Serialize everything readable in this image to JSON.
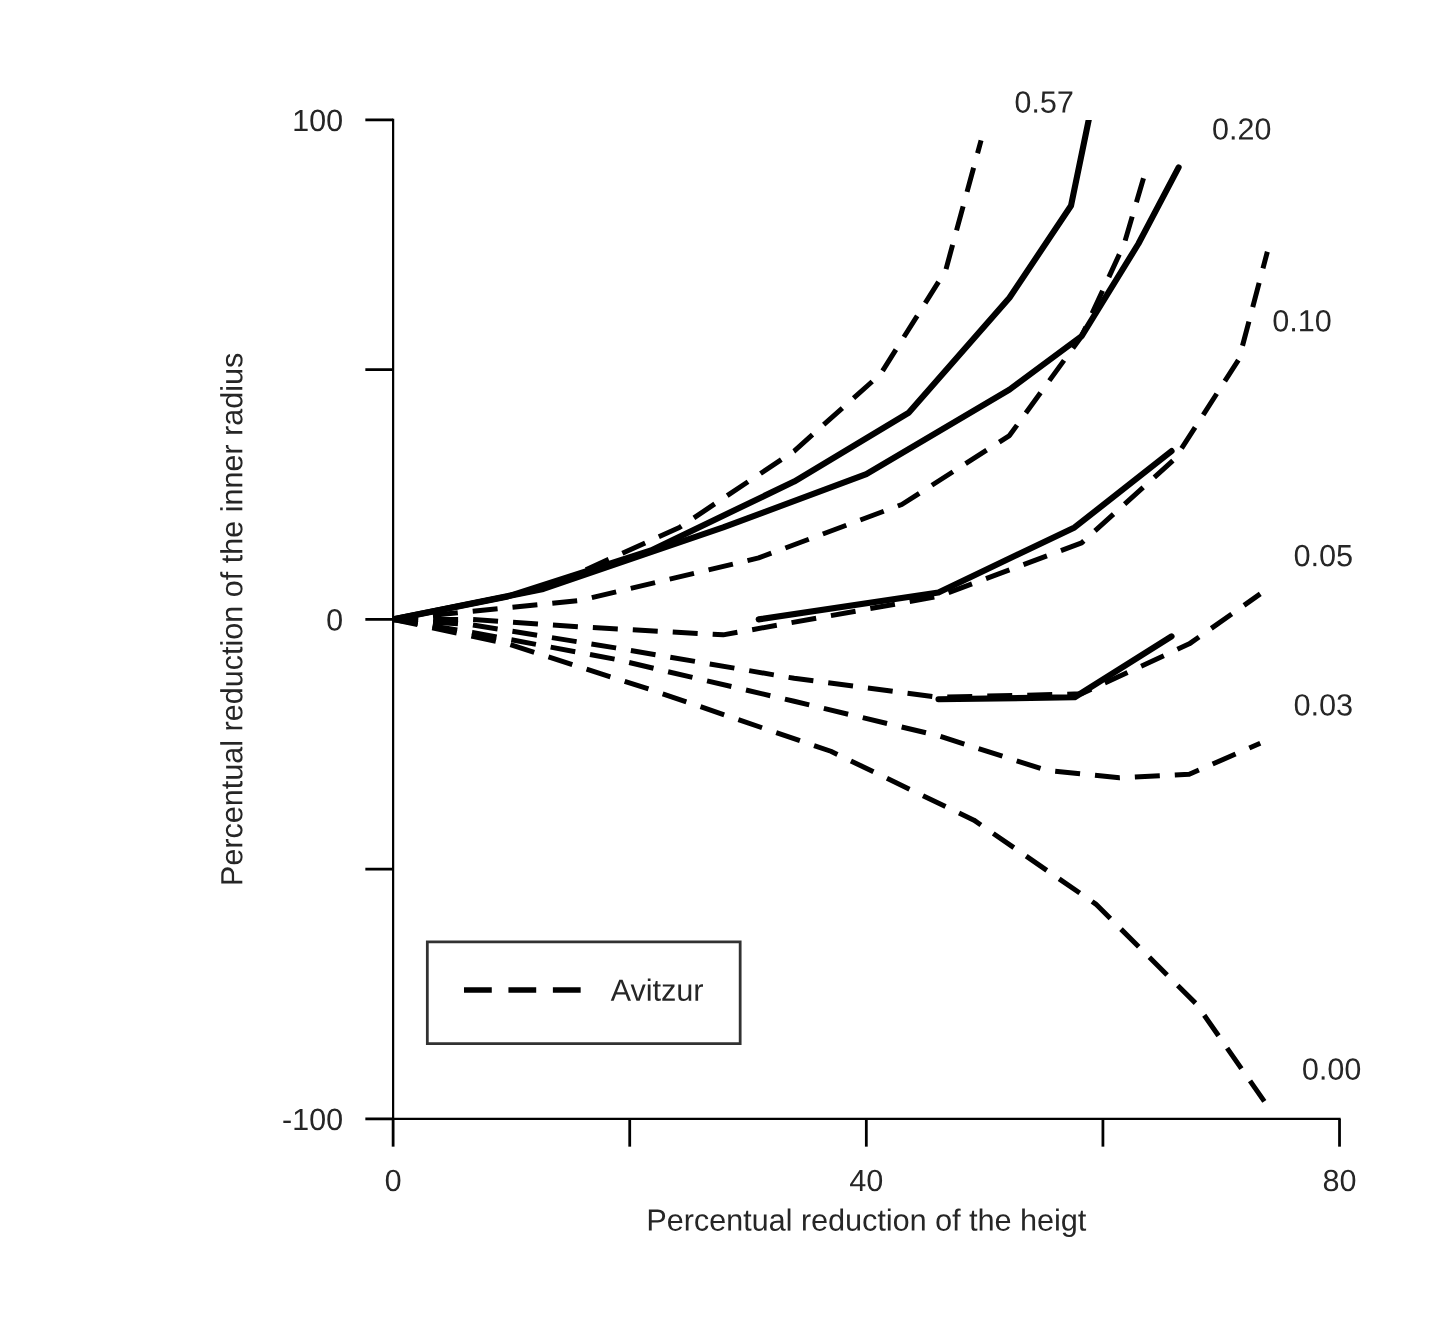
{
  "chart_data": {
    "type": "line",
    "xlabel": "Percentual reduction of the heigt",
    "ylabel": "Percentual reduction of the inner radius",
    "xlim": [
      0,
      80
    ],
    "ylim": [
      -100,
      100
    ],
    "xticks": [
      0,
      {
        "value": 20,
        "label": null
      },
      40,
      {
        "value": 60,
        "label": null
      },
      80
    ],
    "yticks": [
      -100,
      {
        "value": -50,
        "label": null
      },
      0,
      {
        "value": 50,
        "label": null
      },
      100
    ],
    "grid": false,
    "legend": "bottom left",
    "series": [
      {
        "name": "Avitzur",
        "color": "#000000",
        "line_style": "dashed",
        "x": [
          0,
          12.7,
          24.2,
          33.9,
          41.2,
          46.7,
          49.7
        ],
        "values": [
          0,
          6.1,
          18.4,
          33.7,
          49.1,
          69.8,
          95.9
        ]
      },
      {
        "color": "#000000",
        "line_style": "dashed",
        "x": [
          0,
          15.8,
          30.9,
          43,
          52.1,
          58.2,
          61.8,
          63.6
        ],
        "values": [
          0,
          3.8,
          12.3,
          23,
          36.8,
          56.7,
          75.2,
          89.7
        ]
      },
      {
        "color": "#000000",
        "line_style": "dashed",
        "x": [
          0,
          6.7,
          15.8,
          27.9,
          46.1,
          58.2,
          66.1,
          71.5,
          73.9
        ],
        "values": [
          0,
          0,
          -1.5,
          -3.1,
          4.6,
          15.3,
          32.2,
          52.1,
          73.6
        ]
      },
      {
        "color": "#000000",
        "line_style": "dashed",
        "x": [
          0,
          6.7,
          18.8,
          33.9,
          46.1,
          58.2,
          67.3,
          73.3
        ],
        "values": [
          0,
          -1.1,
          -5.7,
          -11.8,
          -15.6,
          -14.9,
          -4.9,
          5.1
        ]
      },
      {
        "color": "#000000",
        "line_style": "dashed",
        "x": [
          0,
          6.7,
          18.8,
          33.9,
          46.1,
          55.2,
          61.4,
          67.3,
          73.3
        ],
        "values": [
          0,
          -2.6,
          -8,
          -16.4,
          -23.3,
          -30.2,
          -31.7,
          -31,
          -24.8
        ]
      },
      {
        "color": "#000000",
        "line_style": "dashed",
        "x": [
          0,
          9.7,
          21.8,
          37,
          49.1,
          59.4,
          67.9,
          74
        ],
        "values": [
          0,
          -4.9,
          -14.1,
          -26.4,
          -40.2,
          -57,
          -77,
          -97.7
        ]
      },
      {
        "color": "#000000",
        "line_style": "solid",
        "x": [
          0,
          9.7,
          21.8,
          33.9,
          43.6,
          52.1,
          57.3,
          58.8
        ],
        "values": [
          0,
          4.6,
          13.8,
          27.6,
          41.4,
          64.4,
          82.8,
          100
        ]
      },
      {
        "color": "#000000",
        "line_style": "solid",
        "x": [
          0,
          12.7,
          27.9,
          40,
          52.1,
          58.2,
          63,
          66.4
        ],
        "values": [
          0,
          6.1,
          18.4,
          29.1,
          46,
          56.7,
          75.2,
          90.5
        ]
      },
      {
        "color": "#000000",
        "line_style": "solid",
        "x": [
          30.9,
          46.1,
          57.6,
          65.8
        ],
        "values": [
          0,
          5.4,
          18.4,
          33.7
        ]
      },
      {
        "color": "#000000",
        "line_style": "solid",
        "x": [
          46.1,
          57.6,
          65.8
        ],
        "values": [
          -16,
          -15.6,
          -3.4
        ]
      }
    ],
    "annotations": [
      {
        "text": "0.57",
        "x": 49.7,
        "y": 95.9
      },
      {
        "text": "0.20",
        "x": 66.4,
        "y": 90.5
      },
      {
        "text": "0.10",
        "x": 71.5,
        "y": 52.1
      },
      {
        "text": "0.05",
        "x": 73.3,
        "y": 5.1
      },
      {
        "text": "0.03",
        "x": 73.3,
        "y": -24.8
      },
      {
        "text": "0.00",
        "x": 74,
        "y": -97.7
      }
    ]
  }
}
